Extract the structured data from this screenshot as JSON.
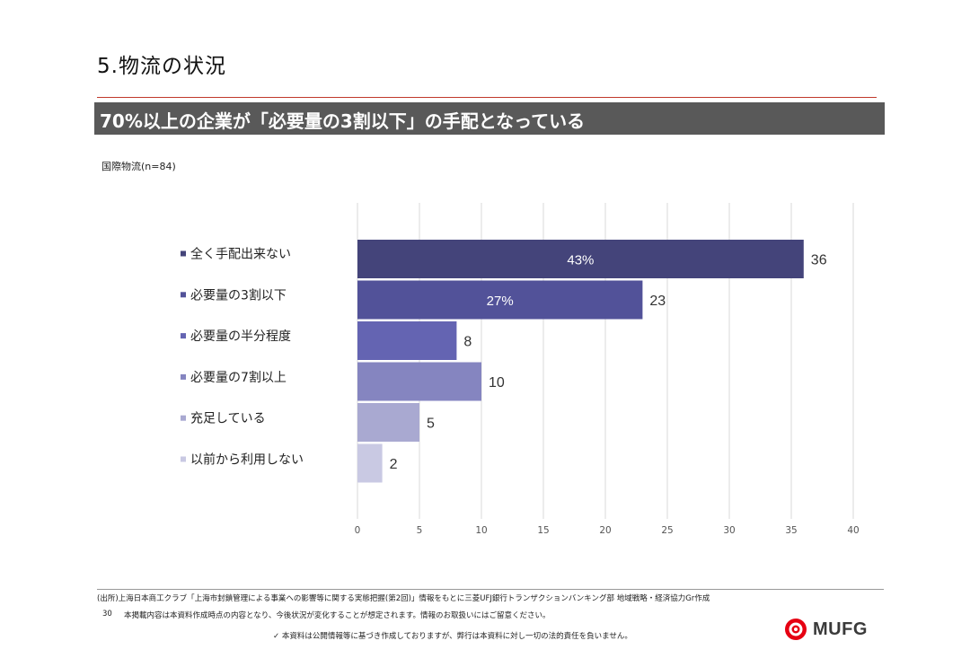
{
  "slide": {
    "title": "5.物流の状況",
    "headline": "70%以上の企業が「必要量の3割以下」の手配となっている",
    "subtitle": "国際物流(n=84)"
  },
  "chart_data": {
    "type": "bar",
    "orientation": "horizontal",
    "categories": [
      "全く手配出来ない",
      "必要量の3割以下",
      "必要量の半分程度",
      "必要量の7割以上",
      "充足している",
      "以前から利用しない"
    ],
    "values": [
      36,
      23,
      8,
      10,
      5,
      2
    ],
    "percent_labels": [
      "43%",
      "27%",
      "",
      "",
      "",
      ""
    ],
    "colors": [
      "#44447a",
      "#525299",
      "#6464b2",
      "#8585c0",
      "#a9a9d1",
      "#c9c9e3"
    ],
    "xlim": [
      0,
      40
    ],
    "xticks": [
      0,
      5,
      10,
      15,
      20,
      25,
      30,
      35,
      40
    ],
    "grid": true,
    "legend": "left-labels",
    "title": "",
    "xlabel": "",
    "ylabel": ""
  },
  "footer": {
    "source": "(出所)上海日本商工クラブ「上海市封鎖管理による事業への影響等に関する実態把握(第2回)」情報をもとに三菱UFJ銀行トランザクションバンキング部 地域戦略・経済協力Gr作成",
    "page_number": "30",
    "notice": "本掲載内容は本資料作成時点の内容となり、今後状況が変化することが想定されます。情報のお取扱いにはご留意ください。",
    "disclaimer": "✓ 本資料は公開情報等に基づき作成しておりますが、弊行は本資料に対し一切の法的責任を負いません。"
  },
  "logo": {
    "text": "MUFG",
    "color": "#e60012"
  }
}
